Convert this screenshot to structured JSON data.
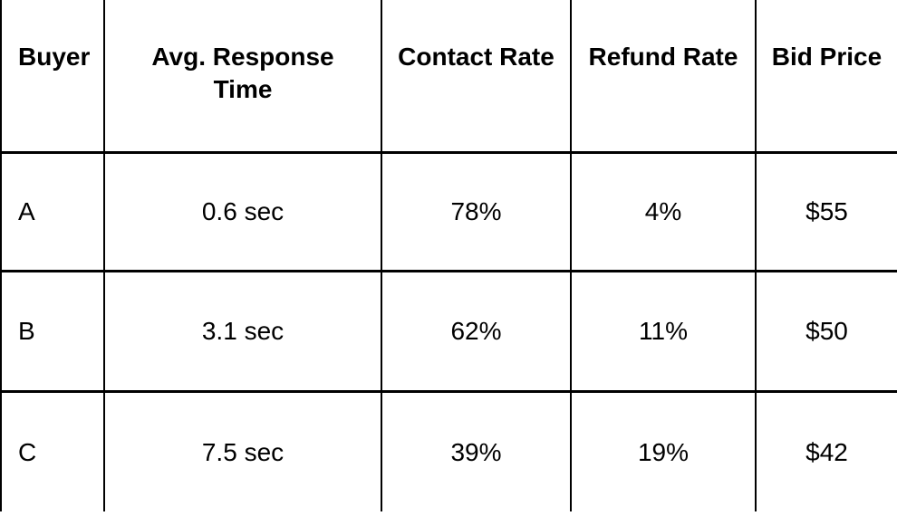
{
  "table": {
    "name": "buyer-comparison-table",
    "columns": [
      {
        "key": "buyer",
        "label": "Buyer"
      },
      {
        "key": "avg_response_time",
        "label": "Avg. Response Time"
      },
      {
        "key": "contact_rate",
        "label": "Contact Rate"
      },
      {
        "key": "refund_rate",
        "label": "Refund Rate"
      },
      {
        "key": "bid_price",
        "label": "Bid Price"
      }
    ],
    "rows": [
      {
        "buyer": "A",
        "avg_response_time": "0.6 sec",
        "contact_rate": "78%",
        "refund_rate": "4%",
        "bid_price": "$55"
      },
      {
        "buyer": "B",
        "avg_response_time": "3.1 sec",
        "contact_rate": "62%",
        "refund_rate": "11%",
        "bid_price": "$50"
      },
      {
        "buyer": "C",
        "avg_response_time": "7.5 sec",
        "contact_rate": "39%",
        "refund_rate": "19%",
        "bid_price": "$42"
      }
    ]
  },
  "colors": {
    "border": "#000000",
    "text": "#000000",
    "background": "#ffffff"
  }
}
